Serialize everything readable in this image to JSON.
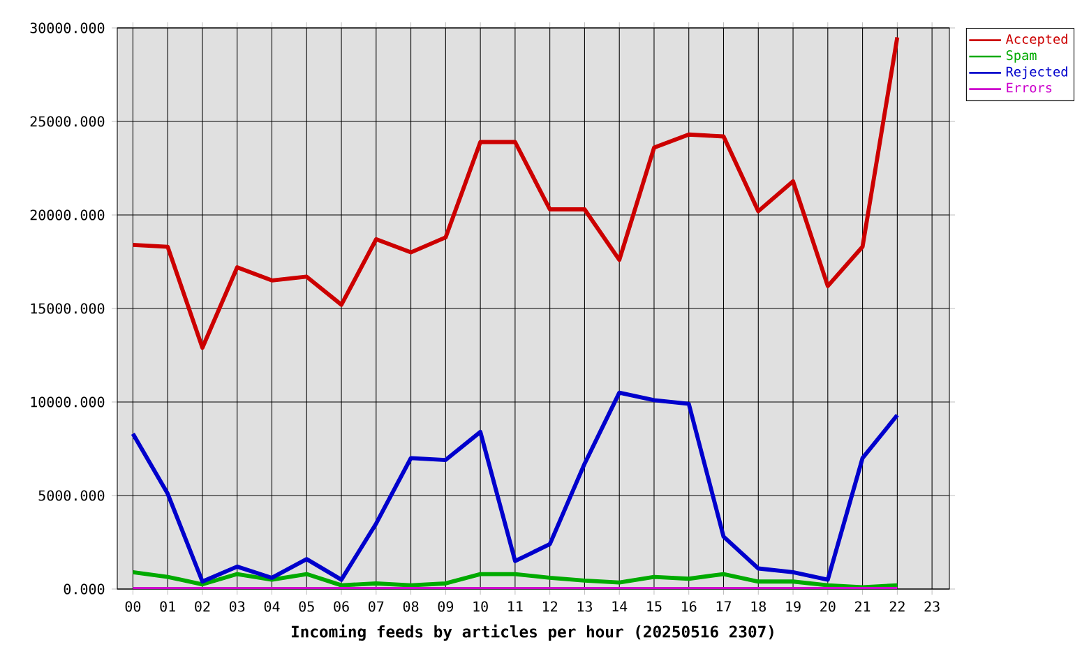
{
  "chart_data": {
    "type": "line",
    "xlabel": "Incoming feeds by articles per hour (20250516 2307)",
    "categories": [
      "00",
      "01",
      "02",
      "03",
      "04",
      "05",
      "06",
      "07",
      "08",
      "09",
      "10",
      "11",
      "12",
      "13",
      "14",
      "15",
      "16",
      "17",
      "18",
      "19",
      "20",
      "21",
      "22",
      "23"
    ],
    "series": [
      {
        "name": "Accepted",
        "color": "#cc0000",
        "values": [
          18400,
          18300,
          12900,
          17200,
          16500,
          16700,
          15200,
          18700,
          18000,
          18800,
          23900,
          23900,
          20300,
          20300,
          17600,
          23600,
          24300,
          24200,
          20200,
          21800,
          16200,
          18300,
          29500,
          null
        ]
      },
      {
        "name": "Spam",
        "color": "#00aa00",
        "values": [
          900,
          650,
          250,
          800,
          500,
          800,
          200,
          300,
          200,
          300,
          800,
          800,
          600,
          450,
          350,
          650,
          550,
          800,
          400,
          400,
          200,
          100,
          200,
          null
        ]
      },
      {
        "name": "Rejected",
        "color": "#0000cc",
        "values": [
          8300,
          5100,
          400,
          1200,
          600,
          1600,
          500,
          3500,
          7000,
          6900,
          8400,
          1500,
          2400,
          6700,
          10500,
          10100,
          9900,
          2800,
          1100,
          900,
          500,
          7000,
          9300,
          null
        ]
      },
      {
        "name": "Errors",
        "color": "#cc00cc",
        "values": [
          0,
          0,
          0,
          0,
          0,
          0,
          0,
          0,
          0,
          0,
          0,
          0,
          0,
          0,
          0,
          0,
          0,
          0,
          0,
          0,
          0,
          0,
          0,
          null
        ]
      }
    ],
    "ylim": [
      0,
      30000
    ],
    "yticks": [
      {
        "value": 0,
        "label": "0.000"
      },
      {
        "value": 5000,
        "label": "5000.000"
      },
      {
        "value": 10000,
        "label": "10000.000"
      },
      {
        "value": 15000,
        "label": "15000.000"
      },
      {
        "value": 20000,
        "label": "20000.000"
      },
      {
        "value": 25000,
        "label": "25000.000"
      },
      {
        "value": 30000,
        "label": "30000.000"
      }
    ],
    "grid": true,
    "legend": "top right"
  }
}
